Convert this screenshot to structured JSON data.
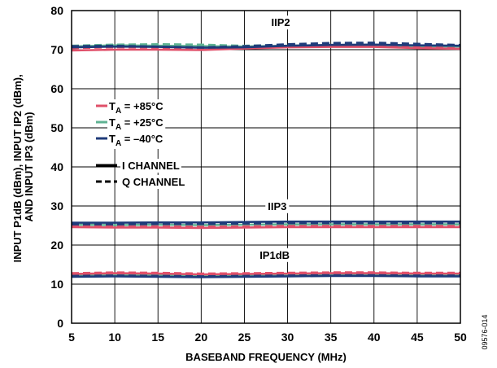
{
  "figure_id": "09576-014",
  "chart_data": {
    "type": "line",
    "xlabel": "BASEBAND FREQUENCY (MHz)",
    "ylabel": [
      "INPUT P1dB (dBm), INPUT IP2 (dBm),",
      "AND INPUT IP3 (dBm)"
    ],
    "xlim": [
      5,
      50
    ],
    "ylim": [
      0,
      80
    ],
    "xticks": [
      5,
      10,
      15,
      20,
      25,
      30,
      35,
      40,
      45,
      50
    ],
    "yticks": [
      0,
      10,
      20,
      30,
      40,
      50,
      60,
      70,
      80
    ],
    "grid": true,
    "legend_position": "left",
    "group_labels": [
      {
        "text": "IIP2",
        "x": 29.2,
        "y": 76
      },
      {
        "text": "IIP3",
        "x": 28.8,
        "y": 29
      },
      {
        "text": "IP1dB",
        "x": 28.5,
        "y": 16.5
      }
    ],
    "legend": {
      "temperatures": [
        {
          "sub": "A",
          "text": " = +85°C",
          "color": "#e0506a"
        },
        {
          "sub": "A",
          "text": " = +25°C",
          "color": "#5fb393"
        },
        {
          "sub": "A",
          "text": " = –40°C",
          "color": "#1f3b7a"
        }
      ],
      "channels": [
        {
          "text": "I CHANNEL",
          "dash": "solid"
        },
        {
          "text": "Q CHANNEL",
          "dash": "dashed"
        }
      ]
    },
    "x": [
      5,
      10,
      15,
      20,
      25,
      30,
      35,
      40,
      45,
      50
    ],
    "series": [
      {
        "group": "IIP2",
        "temp": "+85°C",
        "channel": "I",
        "color": "#e0506a",
        "dash": "solid",
        "values": [
          69.8,
          70.0,
          70.0,
          69.9,
          70.3,
          70.6,
          70.7,
          70.7,
          70.4,
          70.2
        ]
      },
      {
        "group": "IIP2",
        "temp": "+85°C",
        "channel": "Q",
        "color": "#e0506a",
        "dash": "dashed",
        "values": [
          70.4,
          70.6,
          70.5,
          70.3,
          70.5,
          70.8,
          70.9,
          71.0,
          70.7,
          70.3
        ]
      },
      {
        "group": "IIP2",
        "temp": "+25°C",
        "channel": "I",
        "color": "#5fb393",
        "dash": "solid",
        "values": [
          70.8,
          71.1,
          71.0,
          70.9,
          70.8,
          71.0,
          71.1,
          71.1,
          70.9,
          70.8
        ]
      },
      {
        "group": "IIP2",
        "temp": "+25°C",
        "channel": "Q",
        "color": "#5fb393",
        "dash": "dashed",
        "values": [
          71.0,
          71.3,
          71.4,
          71.3,
          71.0,
          71.2,
          71.3,
          71.4,
          71.2,
          71.0
        ]
      },
      {
        "group": "IIP2",
        "temp": "–40°C",
        "channel": "I",
        "color": "#1f3b7a",
        "dash": "solid",
        "values": [
          70.6,
          70.8,
          70.7,
          70.5,
          70.6,
          71.0,
          71.2,
          71.3,
          71.1,
          71.0
        ]
      },
      {
        "group": "IIP2",
        "temp": "–40°C",
        "channel": "Q",
        "color": "#1f3b7a",
        "dash": "dashed",
        "values": [
          70.9,
          71.0,
          70.8,
          70.6,
          70.9,
          71.4,
          71.7,
          71.8,
          71.5,
          71.2
        ]
      },
      {
        "group": "IIP3",
        "temp": "+85°C",
        "channel": "I",
        "color": "#e0506a",
        "dash": "solid",
        "values": [
          24.6,
          24.5,
          24.5,
          24.4,
          24.5,
          24.6,
          24.6,
          24.6,
          24.6,
          24.6
        ]
      },
      {
        "group": "IIP3",
        "temp": "+85°C",
        "channel": "Q",
        "color": "#e0506a",
        "dash": "dashed",
        "values": [
          24.9,
          24.8,
          24.8,
          24.7,
          24.8,
          24.9,
          24.9,
          24.9,
          24.9,
          24.9
        ]
      },
      {
        "group": "IIP3",
        "temp": "+25°C",
        "channel": "I",
        "color": "#5fb393",
        "dash": "solid",
        "values": [
          25.2,
          25.1,
          25.2,
          25.1,
          25.2,
          25.3,
          25.3,
          25.3,
          25.3,
          25.3
        ]
      },
      {
        "group": "IIP3",
        "temp": "+25°C",
        "channel": "Q",
        "color": "#5fb393",
        "dash": "dashed",
        "values": [
          25.4,
          25.3,
          25.4,
          25.3,
          25.4,
          25.5,
          25.5,
          25.5,
          25.5,
          25.5
        ]
      },
      {
        "group": "IIP3",
        "temp": "–40°C",
        "channel": "I",
        "color": "#1f3b7a",
        "dash": "solid",
        "values": [
          25.7,
          25.7,
          25.8,
          25.8,
          25.9,
          26.0,
          26.0,
          26.0,
          26.0,
          26.0
        ]
      },
      {
        "group": "IIP3",
        "temp": "–40°C",
        "channel": "Q",
        "color": "#1f3b7a",
        "dash": "dashed",
        "values": [
          25.3,
          25.3,
          25.4,
          25.4,
          25.5,
          25.6,
          25.6,
          25.6,
          25.6,
          25.6
        ]
      },
      {
        "group": "IP1dB",
        "temp": "+85°C",
        "channel": "I",
        "color": "#e0506a",
        "dash": "solid",
        "values": [
          12.6,
          12.8,
          12.7,
          12.5,
          12.6,
          12.7,
          12.8,
          12.8,
          12.7,
          12.7
        ]
      },
      {
        "group": "IP1dB",
        "temp": "+85°C",
        "channel": "Q",
        "color": "#e0506a",
        "dash": "dashed",
        "values": [
          12.8,
          13.0,
          12.9,
          12.7,
          12.8,
          12.9,
          13.0,
          13.0,
          12.9,
          12.9
        ]
      },
      {
        "group": "IP1dB",
        "temp": "+25°C",
        "channel": "I",
        "color": "#5fb393",
        "dash": "solid",
        "values": [
          12.3,
          12.4,
          12.3,
          12.2,
          12.3,
          12.4,
          12.5,
          12.5,
          12.4,
          12.4
        ]
      },
      {
        "group": "IP1dB",
        "temp": "+25°C",
        "channel": "Q",
        "color": "#5fb393",
        "dash": "dashed",
        "values": [
          12.5,
          12.6,
          12.5,
          12.4,
          12.5,
          12.6,
          12.7,
          12.7,
          12.6,
          12.6
        ]
      },
      {
        "group": "IP1dB",
        "temp": "–40°C",
        "channel": "I",
        "color": "#1f3b7a",
        "dash": "solid",
        "values": [
          11.9,
          12.0,
          11.9,
          11.8,
          11.9,
          12.0,
          12.1,
          12.1,
          12.0,
          12.0
        ]
      },
      {
        "group": "IP1dB",
        "temp": "–40°C",
        "channel": "Q",
        "color": "#1f3b7a",
        "dash": "dashed",
        "values": [
          12.1,
          12.2,
          12.1,
          12.0,
          12.1,
          12.2,
          12.3,
          12.3,
          12.2,
          12.2
        ]
      }
    ]
  }
}
